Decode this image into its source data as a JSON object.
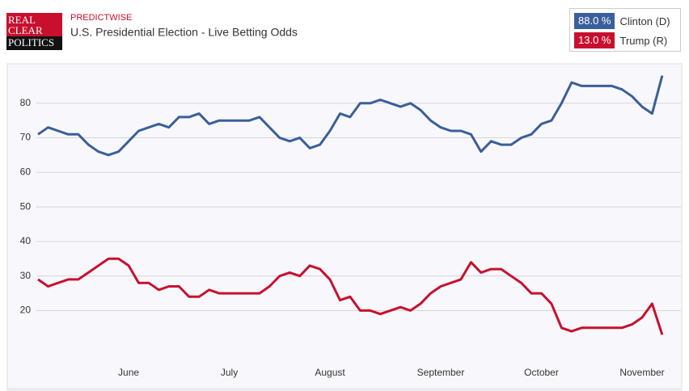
{
  "chart_data": {
    "type": "line",
    "logo": [
      "REAL",
      "CLEAR",
      "POLITICS"
    ],
    "source": "PREDICTWISE",
    "title": "U.S. Presidential Election - Live Betting Odds",
    "categories": [
      null,
      null,
      null,
      null,
      null,
      null,
      null,
      null,
      null,
      "June",
      null,
      null,
      null,
      null,
      null,
      null,
      null,
      null,
      null,
      "July",
      null,
      null,
      null,
      null,
      null,
      null,
      null,
      null,
      null,
      "August",
      null,
      null,
      null,
      null,
      null,
      null,
      null,
      null,
      null,
      null,
      "September",
      null,
      null,
      null,
      null,
      null,
      null,
      null,
      null,
      null,
      "October",
      null,
      null,
      null,
      null,
      null,
      null,
      null,
      null,
      null,
      "November",
      null,
      null
    ],
    "series": [
      {
        "name": "Clinton (D)",
        "color": "#3a5f9a",
        "legend_value": "88.0 %",
        "values": [
          71,
          73,
          72,
          71,
          71,
          68,
          66,
          65,
          66,
          69,
          72,
          73,
          74,
          73,
          76,
          76,
          77,
          74,
          75,
          75,
          75,
          75,
          76,
          73,
          70,
          69,
          70,
          67,
          68,
          72,
          77,
          76,
          80,
          80,
          81,
          80,
          79,
          80,
          78,
          75,
          73,
          72,
          72,
          71,
          66,
          69,
          68,
          68,
          70,
          71,
          74,
          75,
          80,
          86,
          85,
          85,
          85,
          85,
          84,
          82,
          79,
          77,
          88
        ]
      },
      {
        "name": "Trump (R)",
        "color": "#c8102e",
        "legend_value": "13.0 %",
        "values": [
          29,
          27,
          28,
          29,
          29,
          31,
          33,
          35,
          35,
          33,
          28,
          28,
          26,
          27,
          27,
          24,
          24,
          26,
          25,
          25,
          25,
          25,
          25,
          27,
          30,
          31,
          30,
          33,
          32,
          29,
          23,
          24,
          20,
          20,
          19,
          20,
          21,
          20,
          22,
          25,
          27,
          28,
          29,
          34,
          31,
          32,
          32,
          30,
          28,
          25,
          25,
          22,
          15,
          14,
          15,
          15,
          15,
          15,
          15,
          16,
          18,
          22,
          13
        ]
      }
    ],
    "ylim": [
      0,
      90
    ],
    "yticks": [
      20,
      30,
      40,
      50,
      60,
      70,
      80
    ],
    "grid": true
  }
}
